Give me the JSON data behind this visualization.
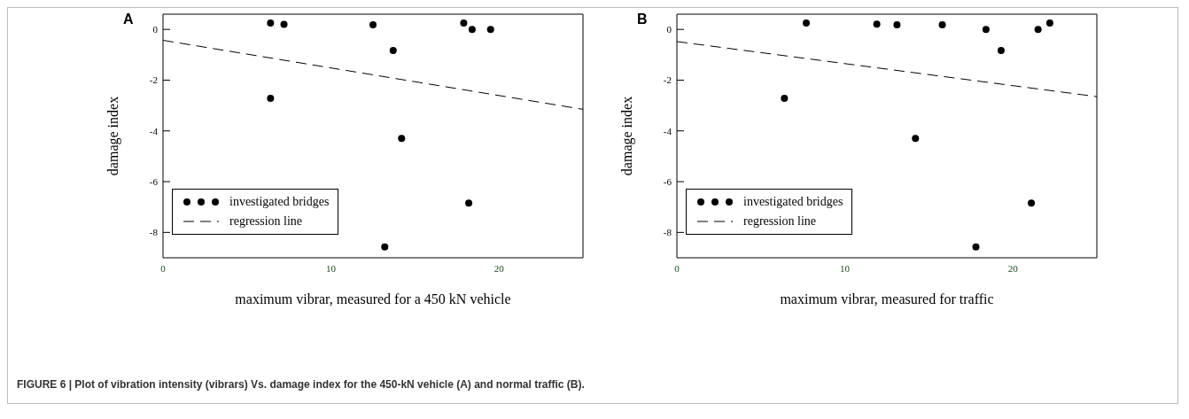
{
  "chart_data": [
    {
      "type": "scatter",
      "title": "A",
      "xlabel": "maximum vibrar, measured for a 450 kN vehicle",
      "ylabel": "damage index",
      "xlim": [
        0,
        25
      ],
      "xticks": [
        0,
        10,
        20
      ],
      "ylim": [
        -9,
        0.6
      ],
      "yticks": [
        -8,
        -6,
        -4,
        -2,
        0
      ],
      "grid": false,
      "legend": "bottom left",
      "annotations": [
        "FIGURE 6 | Plot of vibration intensity (vibrars) Vs. damage index for the 450-kN vehicle (A) and normal traffic (B)."
      ],
      "series": [
        {
          "name": "investigated bridges",
          "type": "scatter",
          "marker": "circle",
          "color": "#000000",
          "x": [
            6.4,
            7.2,
            12.5,
            17.9,
            18.4,
            19.5,
            13.7,
            6.4,
            14.2,
            18.2,
            13.2
          ],
          "values": [
            0.25,
            0.2,
            0.18,
            0.25,
            0,
            0,
            -0.83,
            -2.72,
            -4.3,
            -6.84,
            -8.57
          ]
        },
        {
          "name": "regression line",
          "type": "line",
          "line_style": "dashed",
          "color": "#000000",
          "x": [
            0,
            25
          ],
          "values": [
            -0.43,
            -3.15
          ]
        }
      ]
    },
    {
      "type": "scatter",
      "title": "B",
      "xlabel": "maximum vibrar, measured for traffic",
      "ylabel": "damage index",
      "xlim": [
        0,
        25
      ],
      "xticks": [
        0,
        10,
        20
      ],
      "ylim": [
        -9,
        0.6
      ],
      "yticks": [
        -8,
        -6,
        -4,
        -2,
        0
      ],
      "grid": false,
      "legend": "bottom left",
      "series": [
        {
          "name": "investigated bridges",
          "type": "scatter",
          "marker": "circle",
          "color": "#000000",
          "x": [
            7.7,
            11.9,
            13.1,
            15.8,
            18.4,
            21.5,
            22.2,
            19.3,
            6.4,
            14.2,
            21.1,
            17.8
          ],
          "values": [
            0.25,
            0.21,
            0.18,
            0.18,
            0,
            0,
            0.25,
            -0.83,
            -2.72,
            -4.3,
            -6.84,
            -8.57
          ]
        },
        {
          "name": "regression line",
          "type": "line",
          "line_style": "dashed",
          "color": "#000000",
          "x": [
            0,
            25
          ],
          "values": [
            -0.48,
            -2.65
          ]
        }
      ]
    }
  ]
}
